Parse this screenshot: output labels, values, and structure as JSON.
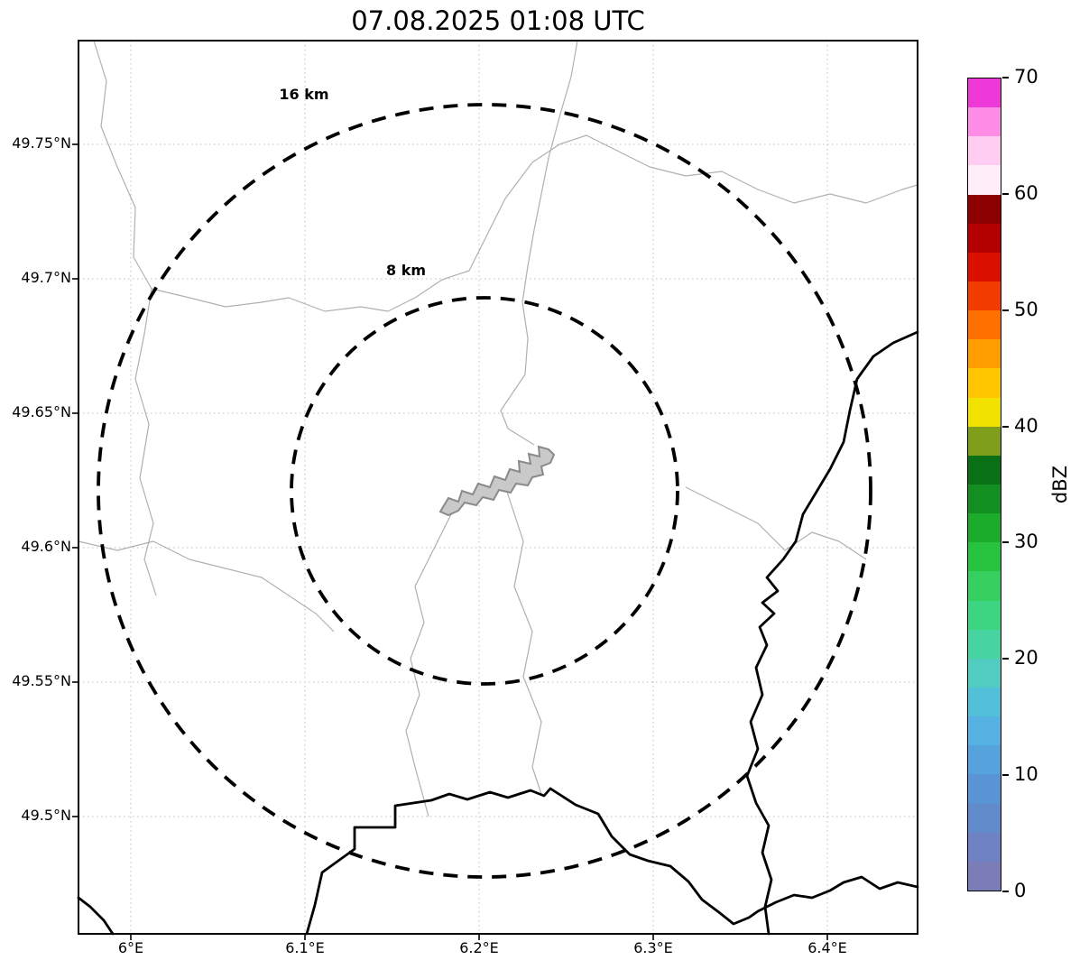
{
  "title": "07.08.2025 01:08 UTC",
  "map": {
    "x_ticks": [
      "6°E",
      "6.1°E",
      "6.2°E",
      "6.3°E",
      "6.4°E"
    ],
    "y_ticks": [
      "49.75°N",
      "49.7°N",
      "49.65°N",
      "49.6°N",
      "49.55°N",
      "49.5°N"
    ],
    "range_rings": [
      {
        "label": "16 km",
        "radius_km": 16
      },
      {
        "label": "8 km",
        "radius_km": 8
      }
    ]
  },
  "colorbar": {
    "label": "dBZ",
    "ticks": [
      0,
      10,
      20,
      30,
      40,
      50,
      60,
      70
    ],
    "min": 0,
    "max": 70,
    "colors_bottom_to_top": [
      "#7a7db8",
      "#6f82c4",
      "#628bcc",
      "#5995d4",
      "#55a2dc",
      "#55b2e2",
      "#53c0da",
      "#50ccc0",
      "#48d4a0",
      "#3ed582",
      "#35d060",
      "#28c33e",
      "#1cac2c",
      "#128f20",
      "#0a7016",
      "#7f9e1a",
      "#f2e200",
      "#ffc600",
      "#ff9e00",
      "#ff7000",
      "#f23c00",
      "#dc1000",
      "#b40000",
      "#8c0000",
      "#ffeef9",
      "#ffccf2",
      "#ff8ce6",
      "#ef38d8"
    ]
  },
  "chart_data": {
    "type": "map",
    "title": "07.08.2025 01:08 UTC",
    "description": "Weather radar range-ring map; no reflectivity echoes shown",
    "x_axis": {
      "tick_labels": [
        "6°E",
        "6.1°E",
        "6.2°E",
        "6.3°E",
        "6.4°E"
      ],
      "range_deg_e": [
        5.97,
        6.45
      ]
    },
    "y_axis": {
      "tick_labels": [
        "49.75°N",
        "49.7°N",
        "49.65°N",
        "49.6°N",
        "49.55°N",
        "49.5°N"
      ],
      "range_deg_n": [
        49.456,
        49.789
      ]
    },
    "radar_center": {
      "lon_e": 6.203,
      "lat_n": 49.621
    },
    "range_rings_km": [
      8,
      16
    ],
    "grid": true,
    "colorbar": {
      "label": "dBZ",
      "min": 0,
      "max": 70,
      "tick_step": 10
    }
  }
}
